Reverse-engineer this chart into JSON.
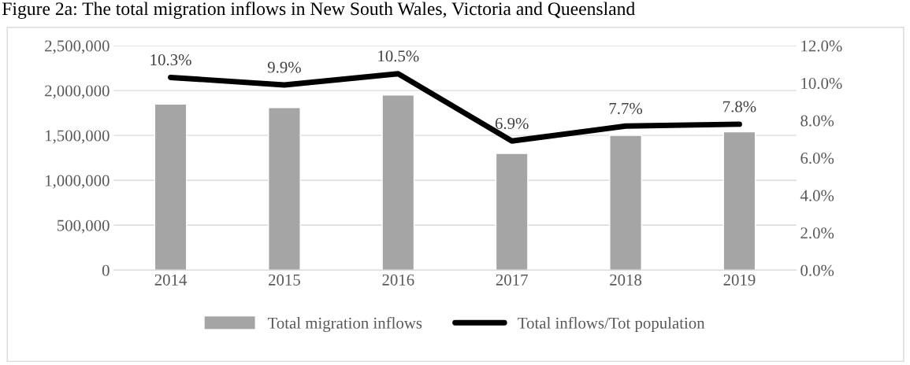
{
  "chart_data": {
    "type": "bar",
    "title": "Figure 2a: The total migration inflows in New South Wales, Victoria and Queensland",
    "categories": [
      "2014",
      "2015",
      "2016",
      "2017",
      "2018",
      "2019"
    ],
    "series": [
      {
        "name": "Total migration inflows",
        "color": "#a5a5a5",
        "values": [
          1850000,
          1810000,
          1950000,
          1300000,
          1500000,
          1540000
        ]
      },
      {
        "name": "Total inflows/Tot population",
        "type": "line",
        "axis": "y2",
        "color": "#000000",
        "values": [
          10.3,
          9.9,
          10.5,
          6.9,
          7.7,
          7.8
        ],
        "value_labels": [
          "10.3%",
          "9.9%",
          "10.5%",
          "6.9%",
          "7.7%",
          "7.8%"
        ]
      }
    ],
    "ylim": [
      0,
      2500000
    ],
    "yticks": [
      0,
      {
        "value": 500000,
        "label": "500,000"
      },
      {
        "value": 1000000,
        "label": "1,000,000"
      },
      {
        "value": 1500000,
        "label": "1,500,000"
      },
      {
        "value": 2000000,
        "label": "2,000,000"
      },
      {
        "value": 2500000,
        "label": "2,500,000"
      }
    ],
    "y2lim": [
      0,
      12
    ],
    "y2ticks": [
      {
        "value": 0,
        "label": "0.0%"
      },
      {
        "value": 2,
        "label": "2.0%"
      },
      {
        "value": 4,
        "label": "4.0%"
      },
      {
        "value": 6,
        "label": "6.0%"
      },
      {
        "value": 8,
        "label": "8.0%"
      },
      {
        "value": 10,
        "label": "10.0%"
      },
      {
        "value": 12,
        "label": "12.0%"
      }
    ],
    "grid": "y",
    "legend": "bottom",
    "marker": "none",
    "line_style": "solid"
  }
}
